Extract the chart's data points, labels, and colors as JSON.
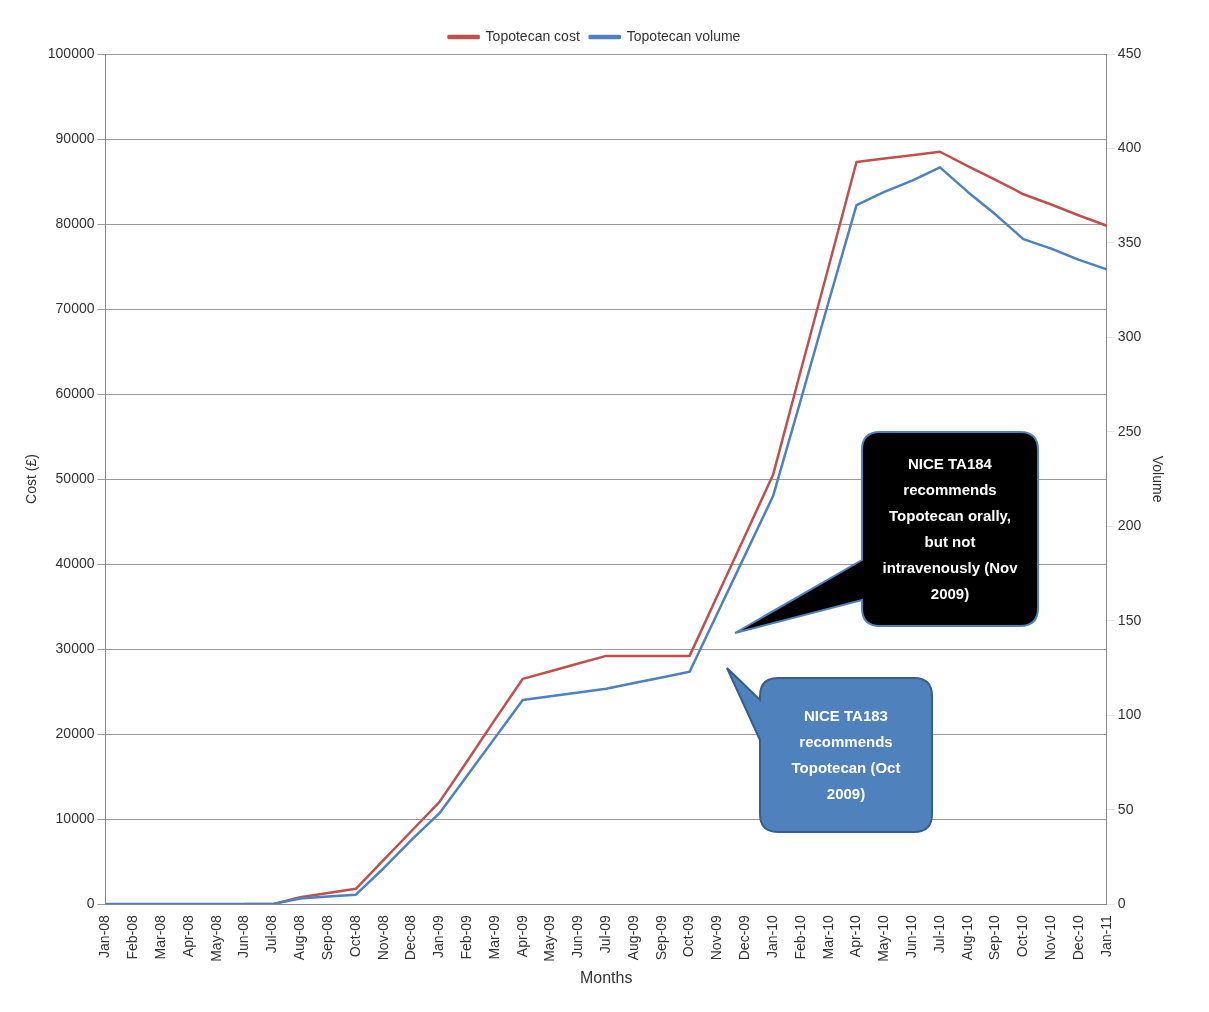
{
  "chart_data": {
    "type": "line",
    "xlabel": "Months",
    "ylabel": "Cost (£)",
    "y2label": "Volume",
    "categories": [
      "Jan-08",
      "Feb-08",
      "Mar-08",
      "Apr-08",
      "May-08",
      "Jun-08",
      "Jul-08",
      "Aug-08",
      "Sep-08",
      "Oct-08",
      "Nov-08",
      "Dec-08",
      "Jan-09",
      "Feb-09",
      "Mar-09",
      "Apr-09",
      "May-09",
      "Jun-09",
      "Jul-09",
      "Aug-09",
      "Sep-09",
      "Oct-09",
      "Nov-09",
      "Dec-09",
      "Jan-10",
      "Feb-10",
      "Mar-10",
      "Apr-10",
      "May-10",
      "Jun-10",
      "Jul-10",
      "Aug-10",
      "Sep-10",
      "Oct-10",
      "Nov-10",
      "Dec-10",
      "Jan-11"
    ],
    "series": [
      {
        "name": "Topotecan cost",
        "color": "#c0504d",
        "values": [
          null,
          null,
          null,
          null,
          null,
          0,
          0,
          800,
          1300,
          1800,
          5200,
          8600,
          12000,
          16800,
          21700,
          26500,
          27400,
          28300,
          29200,
          29200,
          29200,
          29200,
          36300,
          43400,
          50500,
          62800,
          75000,
          87300,
          87700,
          88100,
          88500,
          86800,
          85200,
          83500,
          82300,
          81000,
          79800
        ]
      },
      {
        "name": "Topotecan volume",
        "color": "#4f81bd",
        "axis": "y2",
        "values": [
          0,
          0,
          0,
          0,
          0,
          0,
          0,
          3,
          4,
          5,
          19,
          34,
          48,
          68,
          88,
          108,
          110,
          112,
          114,
          117,
          120,
          123,
          154,
          185,
          216,
          267,
          319,
          370,
          377,
          383,
          390,
          377,
          365,
          352,
          347,
          341,
          336
        ]
      }
    ],
    "ylim": [
      0,
      100000
    ],
    "yticks": [
      0,
      10000,
      20000,
      30000,
      40000,
      50000,
      60000,
      70000,
      80000,
      90000,
      100000
    ],
    "y2lim": [
      0,
      450
    ],
    "y2ticks": [
      0,
      50,
      100,
      150,
      200,
      250,
      300,
      350,
      400,
      450
    ],
    "grid": "y",
    "legend": "top",
    "marker": "none",
    "line_style": "solid",
    "annotations": [
      "NICE TA184 recommends Topotecan orally, but not intravenously (Nov 2009)",
      "NICE TA183 recommends Topotecan (Oct 2009)"
    ]
  }
}
